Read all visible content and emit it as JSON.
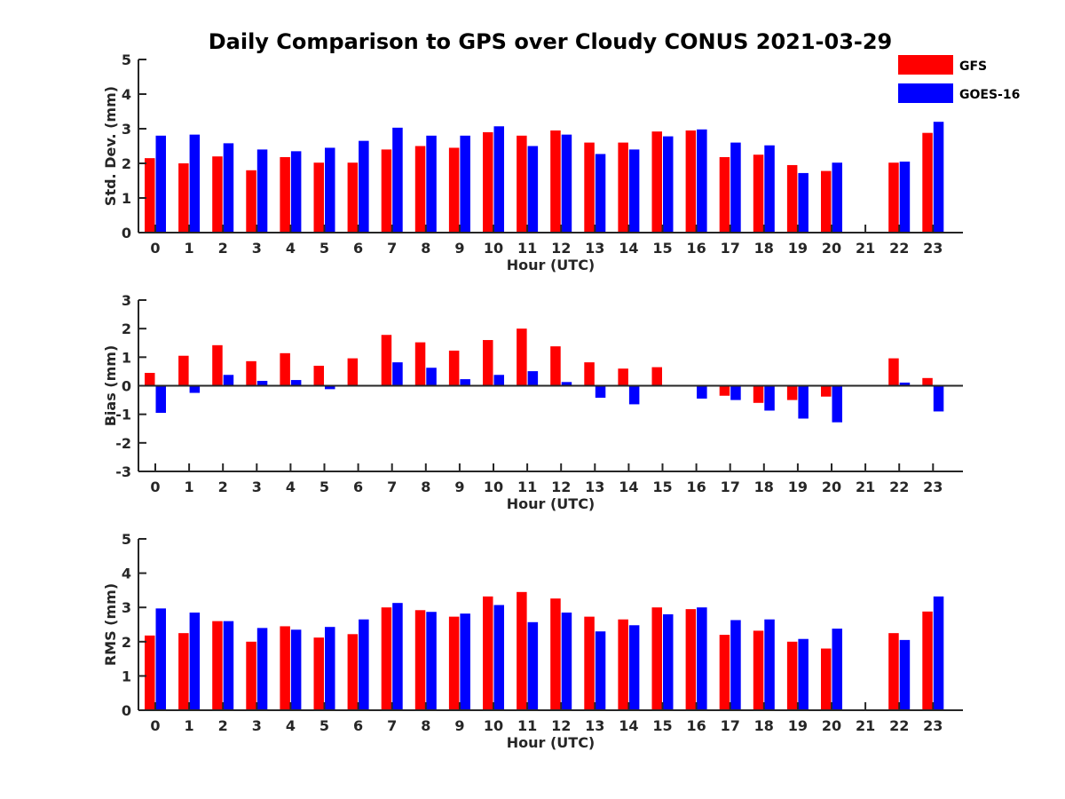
{
  "title": "Daily Comparison to GPS over Cloudy CONUS 2021-03-29",
  "colors": {
    "GFS": "#ff0000",
    "GOES-16": "#0000ff",
    "axis": "#262626"
  },
  "legend": {
    "placement": "top-right",
    "entries": [
      "GFS",
      "GOES-16"
    ]
  },
  "chart_data": [
    {
      "type": "bar",
      "title": "Daily Comparison to GPS over Cloudy CONUS 2021-03-29",
      "xlabel": "Hour (UTC)",
      "ylabel": "Std. Dev. (mm)",
      "ylim": [
        0,
        5
      ],
      "yticks": [
        0,
        1,
        2,
        3,
        4,
        5
      ],
      "categories": [
        "0",
        "1",
        "2",
        "3",
        "4",
        "5",
        "6",
        "7",
        "8",
        "9",
        "10",
        "11",
        "12",
        "13",
        "14",
        "15",
        "16",
        "17",
        "18",
        "19",
        "20",
        "21",
        "22",
        "23"
      ],
      "series": [
        {
          "name": "GFS",
          "values": [
            2.15,
            2.0,
            2.2,
            1.8,
            2.18,
            2.02,
            2.02,
            2.4,
            2.5,
            2.45,
            2.9,
            2.8,
            2.95,
            2.6,
            2.6,
            2.92,
            2.95,
            2.18,
            2.25,
            1.95,
            1.78,
            null,
            2.02,
            2.88
          ]
        },
        {
          "name": "GOES-16",
          "values": [
            2.8,
            2.83,
            2.58,
            2.4,
            2.35,
            2.45,
            2.65,
            3.03,
            2.8,
            2.8,
            3.07,
            2.5,
            2.83,
            2.27,
            2.4,
            2.78,
            2.98,
            2.6,
            2.52,
            1.72,
            2.02,
            null,
            2.05,
            3.2
          ]
        }
      ]
    },
    {
      "type": "bar",
      "xlabel": "Hour (UTC)",
      "ylabel": "Bias (mm)",
      "ylim": [
        -3,
        3
      ],
      "yticks": [
        -3,
        -2,
        -1,
        0,
        1,
        2,
        3
      ],
      "categories": [
        "0",
        "1",
        "2",
        "3",
        "4",
        "5",
        "6",
        "7",
        "8",
        "9",
        "10",
        "11",
        "12",
        "13",
        "14",
        "15",
        "16",
        "17",
        "18",
        "19",
        "20",
        "21",
        "22",
        "23"
      ],
      "series": [
        {
          "name": "GFS",
          "values": [
            0.45,
            1.05,
            1.42,
            0.86,
            1.14,
            0.7,
            0.96,
            1.78,
            1.52,
            1.23,
            1.6,
            2.0,
            1.38,
            0.82,
            0.6,
            0.65,
            0.0,
            -0.35,
            -0.6,
            -0.5,
            -0.38,
            null,
            0.96,
            0.27
          ]
        },
        {
          "name": "GOES-16",
          "values": [
            -0.95,
            -0.25,
            0.38,
            0.17,
            0.2,
            -0.12,
            0.0,
            0.82,
            0.63,
            0.23,
            0.38,
            0.51,
            0.13,
            -0.42,
            -0.65,
            0.0,
            -0.45,
            -0.5,
            -0.87,
            -1.15,
            -1.28,
            null,
            0.11,
            -0.9
          ]
        }
      ]
    },
    {
      "type": "bar",
      "xlabel": "Hour (UTC)",
      "ylabel": "RMS (mm)",
      "ylim": [
        0,
        5
      ],
      "yticks": [
        0,
        1,
        2,
        3,
        4,
        5
      ],
      "categories": [
        "0",
        "1",
        "2",
        "3",
        "4",
        "5",
        "6",
        "7",
        "8",
        "9",
        "10",
        "11",
        "12",
        "13",
        "14",
        "15",
        "16",
        "17",
        "18",
        "19",
        "20",
        "21",
        "22",
        "23"
      ],
      "series": [
        {
          "name": "GFS",
          "values": [
            2.18,
            2.25,
            2.6,
            2.0,
            2.45,
            2.12,
            2.22,
            3.0,
            2.92,
            2.73,
            3.32,
            3.45,
            3.26,
            2.73,
            2.65,
            3.0,
            2.95,
            2.2,
            2.32,
            2.0,
            1.8,
            null,
            2.25,
            2.88
          ]
        },
        {
          "name": "GOES-16",
          "values": [
            2.97,
            2.85,
            2.6,
            2.4,
            2.35,
            2.43,
            2.65,
            3.13,
            2.87,
            2.82,
            3.07,
            2.57,
            2.85,
            2.3,
            2.48,
            2.8,
            3.0,
            2.63,
            2.65,
            2.08,
            2.38,
            null,
            2.05,
            3.32
          ]
        }
      ]
    }
  ]
}
